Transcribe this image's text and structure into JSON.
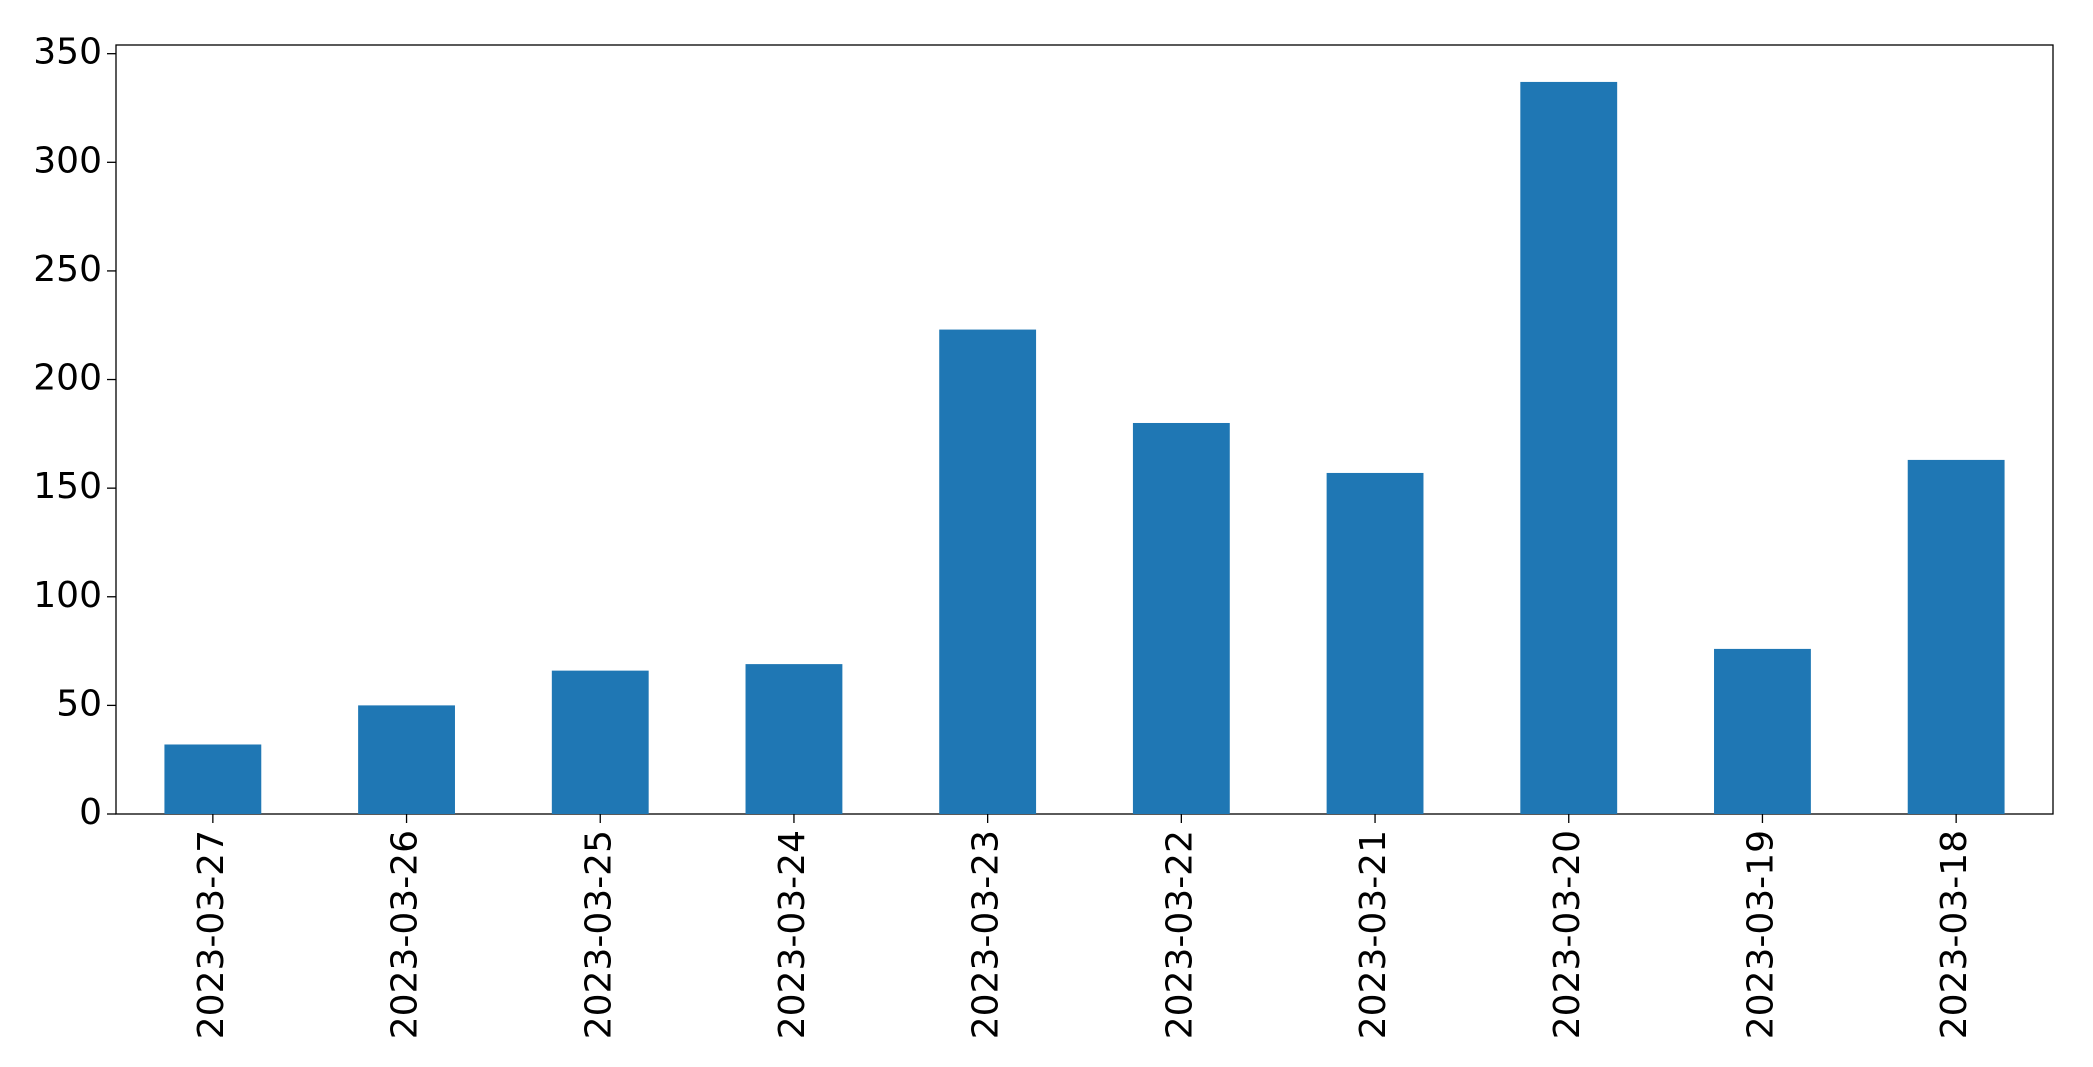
{
  "chart_data": {
    "type": "bar",
    "categories": [
      "2023-03-27",
      "2023-03-26",
      "2023-03-25",
      "2023-03-24",
      "2023-03-23",
      "2023-03-22",
      "2023-03-21",
      "2023-03-20",
      "2023-03-19",
      "2023-03-18"
    ],
    "values": [
      32,
      50,
      66,
      69,
      223,
      180,
      157,
      337,
      76,
      163
    ],
    "color": "#1f77b4",
    "ylim": [
      0,
      354
    ],
    "yticks": [
      0,
      50,
      100,
      150,
      200,
      250,
      300,
      350
    ],
    "grid": false
  }
}
